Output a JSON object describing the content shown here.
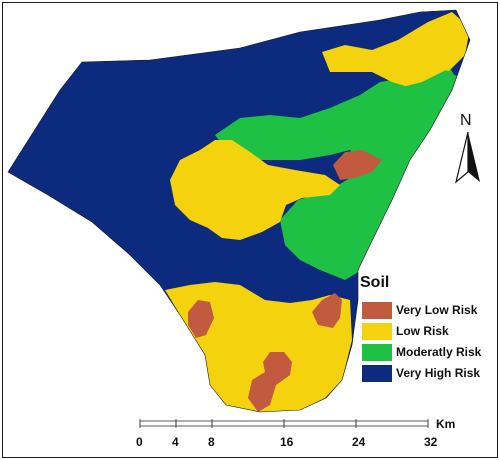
{
  "map": {
    "colors": {
      "very_low": "#c15a3e",
      "low": "#f5d20e",
      "moderate": "#1fc144",
      "very_high": "#0c2b7e",
      "outline": "#1a1a1a"
    }
  },
  "legend": {
    "title": "Soil",
    "items": [
      {
        "label": "Very Low Risk",
        "color": "#c15a3e"
      },
      {
        "label": "Low Risk",
        "color": "#f5d20e"
      },
      {
        "label": "Moderatly Risk",
        "color": "#1fc144"
      },
      {
        "label": "Very High Risk",
        "color": "#0c2b7e"
      }
    ]
  },
  "north_arrow": {
    "letter": "N",
    "icon": "north-arrow-icon"
  },
  "scale_bar": {
    "unit": "Km",
    "ticks": [
      "0",
      "4",
      "8",
      "16",
      "24",
      "32"
    ],
    "tick_values": [
      0,
      4,
      8,
      16,
      24,
      32
    ]
  }
}
